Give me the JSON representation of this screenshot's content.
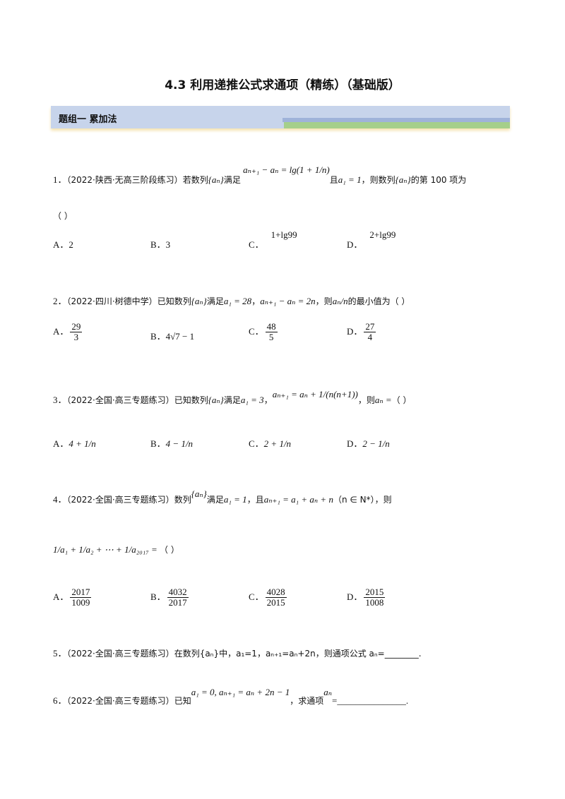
{
  "title": "4.3  利用递推公式求通项（精练）（基础版）",
  "section": "题组一    累加法",
  "q1": {
    "num": "1．",
    "source": "（2022·陕西·无高三阶段练习）",
    "t1": "若数列",
    "seq": "{aₙ}",
    "t2": "满足",
    "formula": "aₙ₊₁ − aₙ = lg(1 + 1/n)",
    "t3": "且",
    "cond": "a₁ = 1",
    "t4": "，则数列",
    "t5": "的第 100 项为",
    "blank": "（     ）",
    "options": [
      {
        "label": "A．",
        "value": "2"
      },
      {
        "label": "B．",
        "value": "3"
      },
      {
        "label": "C．",
        "value": "1+lg99"
      },
      {
        "label": "D．",
        "value": "2+lg99"
      }
    ]
  },
  "q2": {
    "num": "2．",
    "source": "（2022·四川·树德中学）",
    "t1": "已知数列",
    "seq": "{aₙ}",
    "t2": "满足",
    "cond": "a₁ = 28",
    "t3": "，",
    "formula": "aₙ₊₁ − aₙ = 2n",
    "t4": "，则",
    "frac": "aₙ/n",
    "t5": "的最小值为（     ）",
    "options": [
      {
        "label": "A．",
        "num": "29",
        "den": "3"
      },
      {
        "label": "B．",
        "value": "4√7 − 1"
      },
      {
        "label": "C．",
        "num": "48",
        "den": "5"
      },
      {
        "label": "D．",
        "num": "27",
        "den": "4"
      }
    ]
  },
  "q3": {
    "num": "3．",
    "source": "（2022·全国·高三专题练习）",
    "t1": "已知数列",
    "seq": "{aₙ}",
    "t2": "满足",
    "cond": "a₁ = 3",
    "t3": "，",
    "formula": "aₙ₊₁ = aₙ + 1/(n(n+1))",
    "t4": "，则",
    "an": "aₙ =",
    "t5": "（     ）",
    "options": [
      {
        "label": "A．",
        "value": "4 + 1/n"
      },
      {
        "label": "B．",
        "value": "4 − 1/n"
      },
      {
        "label": "C．",
        "value": "2 + 1/n"
      },
      {
        "label": "D．",
        "value": "2 − 1/n"
      }
    ]
  },
  "q4": {
    "num": "4．",
    "source": "（2022·全国·高三专题练习）",
    "t1": "数列",
    "seq": "{aₙ}",
    "t2": "满足",
    "cond": "a₁ = 1",
    "t3": "，且",
    "formula": "aₙ₊₁ = a₁ + aₙ + n",
    "t4": "（n ∈ N*），则",
    "sum": "1/a₁ + 1/a₂ + ⋯ + 1/a₂₀₁₇ =",
    "blank": "（     ）",
    "options": [
      {
        "label": "A．",
        "num": "2017",
        "den": "1009"
      },
      {
        "label": "B．",
        "num": "4032",
        "den": "2017"
      },
      {
        "label": "C．",
        "num": "4028",
        "den": "2015"
      },
      {
        "label": "D．",
        "num": "2015",
        "den": "1008"
      }
    ]
  },
  "q5": {
    "num": "5．",
    "source": "（2022·全国·高三专题练习）",
    "text": "在数列{aₙ}中，a₁=1，aₙ₊₁=aₙ+2n，则通项公式 aₙ=________."
  },
  "q6": {
    "num": "6．",
    "source": "（2022·全国·高三专题练习）",
    "t1": "已知",
    "formula": "a₁ = 0, aₙ₊₁ = aₙ + 2n − 1",
    "t2": "，求通项",
    "an": "aₙ",
    "t3": "=_______________."
  }
}
